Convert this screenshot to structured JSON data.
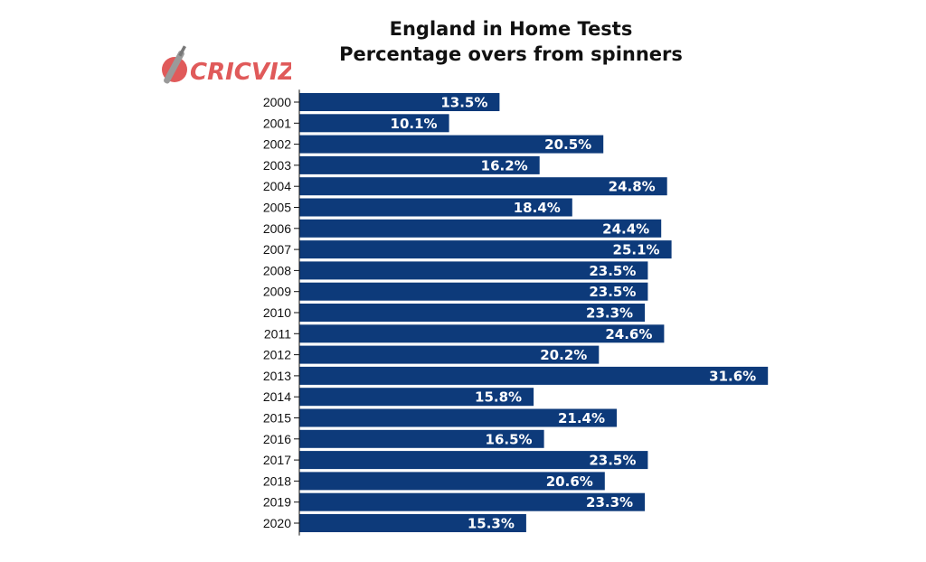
{
  "logo": {
    "text": "CRICVIZ",
    "color": "#e05a5a",
    "icon": "cricket-bat-ball-icon"
  },
  "chart_data": {
    "type": "bar",
    "orientation": "horizontal",
    "title": "England in Home Tests",
    "subtitle": "Percentage overs from spinners",
    "xlabel": "",
    "ylabel": "",
    "categories": [
      "2000",
      "2001",
      "2002",
      "2003",
      "2004",
      "2005",
      "2006",
      "2007",
      "2008",
      "2009",
      "2010",
      "2011",
      "2012",
      "2013",
      "2014",
      "2015",
      "2016",
      "2017",
      "2018",
      "2019",
      "2020"
    ],
    "values": [
      13.5,
      10.1,
      20.5,
      16.2,
      24.8,
      18.4,
      24.4,
      25.1,
      23.5,
      23.5,
      23.3,
      24.6,
      20.2,
      31.6,
      15.8,
      21.4,
      16.5,
      23.5,
      20.6,
      23.3,
      15.3
    ],
    "data_labels": [
      "13.5%",
      "10.1%",
      "20.5%",
      "16.2%",
      "24.8%",
      "18.4%",
      "24.4%",
      "25.1%",
      "23.5%",
      "23.5%",
      "23.3%",
      "24.6%",
      "20.2%",
      "31.6%",
      "15.8%",
      "21.4%",
      "16.5%",
      "23.5%",
      "20.6%",
      "23.3%",
      "15.3%"
    ],
    "bar_color": "#0d3a7a",
    "label_color": "#ffffff",
    "grid": false,
    "legend": "none"
  }
}
